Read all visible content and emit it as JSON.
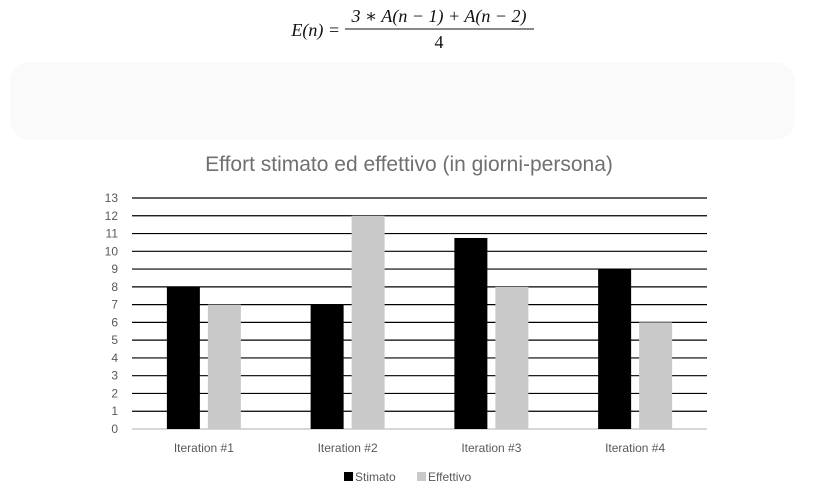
{
  "formula": {
    "lhs": "E(n) =",
    "numerator": "3 ∗ A(n − 1) + A(n − 2)",
    "denominator": "4"
  },
  "chart_data": {
    "type": "bar",
    "title": "Effort stimato ed effettivo (in giorni-persona)",
    "categories": [
      "Iteration #1",
      "Iteration #2",
      "Iteration #3",
      "Iteration #4"
    ],
    "series": [
      {
        "name": "Stimato",
        "values": [
          8,
          7,
          10.75,
          9
        ],
        "color": "#000000"
      },
      {
        "name": "Effettivo",
        "values": [
          7,
          12,
          8,
          6
        ],
        "color": "#c9c9c9"
      }
    ],
    "ylim": [
      0,
      13
    ],
    "yticks": [
      0,
      1,
      2,
      3,
      4,
      5,
      6,
      7,
      8,
      9,
      10,
      11,
      12,
      13
    ],
    "grid": true,
    "legend": "bottom",
    "xlabel": "",
    "ylabel": ""
  }
}
